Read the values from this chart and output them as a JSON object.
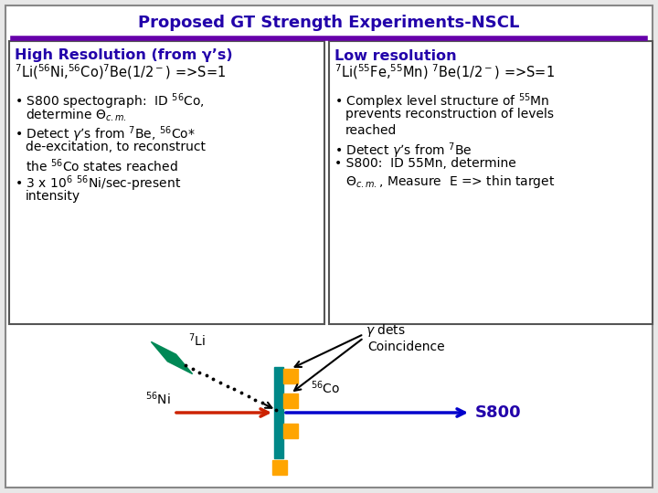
{
  "title": "Proposed GT Strength Experiments-NSCL",
  "title_color": "#2200AA",
  "title_fontsize": 13,
  "bg_color": "#e8e8e8",
  "box_bg": "#ffffff",
  "left_header": "High Resolution (from γ’s)",
  "left_header_color": "#2200AA",
  "right_header": "Low resolution",
  "right_header_color": "#2200AA",
  "teal_color": "#008888",
  "orange_color": "#FFA500",
  "red_color": "#CC2200",
  "blue_color": "#0000CC",
  "green_color": "#008855",
  "s800_color": "#2200AA",
  "purple_line_color": "#6600AA"
}
